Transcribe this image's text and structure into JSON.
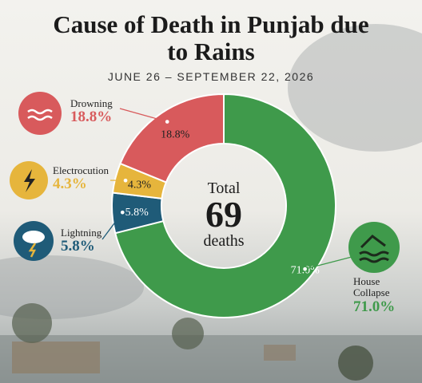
{
  "chart_data": {
    "type": "donut",
    "title": "Cause of Death in Punjab due to Rains",
    "subtitle": "JUNE 26 – SEPTEMBER 22, 2026",
    "center_label": {
      "top": "Total",
      "value": 69,
      "bottom": "deaths"
    },
    "categories": [
      "House Collapse",
      "Lightning",
      "Electrocution",
      "Drowning"
    ],
    "values": [
      71.0,
      5.8,
      4.3,
      18.8
    ],
    "value_labels": [
      "71.0%",
      "5.8%",
      "4.3%",
      "18.8%"
    ],
    "colors": [
      "#3f9a4b",
      "#1f5b78",
      "#e6b53c",
      "#d85a5c"
    ]
  }
}
